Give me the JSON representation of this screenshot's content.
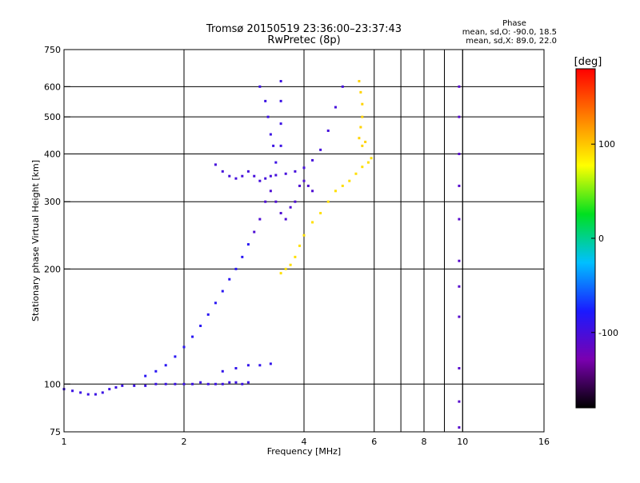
{
  "chart_data": {
    "type": "scatter",
    "title": "Tromsø 20150519 23:36:00–23:37:43",
    "subtitle": "RwPretec (8p)",
    "xlabel": "Frequency [MHz]",
    "ylabel": "Stationary phase Virtual Height [km]",
    "x_scale": "log",
    "y_scale": "log",
    "xlim": [
      1,
      16
    ],
    "ylim": [
      75,
      750
    ],
    "x_ticks": [
      {
        "value": 1,
        "label": "1"
      },
      {
        "value": 2,
        "label": "2"
      },
      {
        "value": 4,
        "label": "4"
      },
      {
        "value": 6,
        "label": "6"
      },
      {
        "value": 8,
        "label": "8"
      },
      {
        "value": 10,
        "label": "10"
      },
      {
        "value": 16,
        "label": "16"
      }
    ],
    "x_minor_gridlines": [
      7,
      9,
      10
    ],
    "y_ticks": [
      {
        "value": 75,
        "label": "75"
      },
      {
        "value": 100,
        "label": "100"
      },
      {
        "value": 200,
        "label": "200"
      },
      {
        "value": 300,
        "label": "300"
      },
      {
        "value": 400,
        "label": "400"
      },
      {
        "value": 500,
        "label": "500"
      },
      {
        "value": 600,
        "label": "600"
      },
      {
        "value": 750,
        "label": "750"
      }
    ],
    "grid": true,
    "phase_stats": {
      "heading": "Phase",
      "line_o": "mean, sd,O: -90.0, 18.5",
      "line_x": "mean, sd,X:  89.0, 22.0"
    },
    "colorbar": {
      "label": "[deg]",
      "range": [
        -180,
        180
      ],
      "ticks": [
        {
          "value": 100,
          "label": "100"
        },
        {
          "value": 0,
          "label": "0"
        },
        {
          "value": -100,
          "label": "-100"
        }
      ],
      "colormap": [
        "#000000",
        "#7a00b0",
        "#1a1aff",
        "#00c0ff",
        "#00e020",
        "#ffff00",
        "#ff8000",
        "#ff0000"
      ]
    },
    "traces": [
      {
        "points": [
          [
            1.0,
            97
          ],
          [
            1.05,
            96
          ],
          [
            1.1,
            95
          ],
          [
            1.15,
            94
          ],
          [
            1.2,
            94
          ],
          [
            1.25,
            95
          ],
          [
            1.3,
            97
          ],
          [
            1.35,
            98
          ],
          [
            1.4,
            99
          ],
          [
            1.5,
            99
          ],
          [
            1.6,
            99
          ],
          [
            1.7,
            100
          ],
          [
            1.8,
            100
          ],
          [
            1.9,
            100
          ],
          [
            2.0,
            100
          ],
          [
            2.1,
            100
          ],
          [
            2.2,
            101
          ],
          [
            2.3,
            100
          ],
          [
            2.4,
            100
          ],
          [
            2.5,
            100
          ],
          [
            2.6,
            101
          ],
          [
            2.7,
            101
          ],
          [
            2.8,
            100
          ],
          [
            2.9,
            101
          ]
        ],
        "phase": -95
      },
      {
        "points": [
          [
            1.6,
            105
          ],
          [
            1.7,
            108
          ],
          [
            1.8,
            112
          ],
          [
            1.9,
            118
          ],
          [
            2.0,
            125
          ],
          [
            2.1,
            133
          ],
          [
            2.2,
            142
          ],
          [
            2.3,
            152
          ],
          [
            2.4,
            163
          ],
          [
            2.5,
            175
          ],
          [
            2.6,
            188
          ],
          [
            2.7,
            200
          ],
          [
            2.8,
            215
          ],
          [
            2.9,
            232
          ]
        ],
        "phase": -85
      },
      {
        "points": [
          [
            2.5,
            108
          ],
          [
            2.7,
            110
          ],
          [
            2.9,
            112
          ],
          [
            3.1,
            112
          ],
          [
            3.3,
            113
          ]
        ],
        "phase": -90
      },
      {
        "points": [
          [
            2.4,
            375
          ],
          [
            2.5,
            360
          ],
          [
            2.6,
            350
          ],
          [
            2.7,
            345
          ],
          [
            2.8,
            350
          ],
          [
            2.9,
            360
          ],
          [
            3.0,
            350
          ],
          [
            3.1,
            340
          ],
          [
            3.2,
            345
          ],
          [
            3.3,
            350
          ],
          [
            3.4,
            352
          ],
          [
            3.6,
            355
          ],
          [
            3.8,
            360
          ],
          [
            4.0,
            368
          ],
          [
            4.2,
            385
          ],
          [
            4.4,
            410
          ],
          [
            4.6,
            460
          ],
          [
            4.8,
            530
          ],
          [
            5.0,
            600
          ]
        ],
        "phase": -100
      },
      {
        "points": [
          [
            3.0,
            250
          ],
          [
            3.1,
            270
          ],
          [
            3.2,
            300
          ],
          [
            3.3,
            320
          ],
          [
            3.4,
            300
          ],
          [
            3.5,
            280
          ],
          [
            3.6,
            270
          ],
          [
            3.7,
            290
          ],
          [
            3.8,
            300
          ],
          [
            3.9,
            330
          ],
          [
            4.0,
            340
          ],
          [
            4.1,
            330
          ],
          [
            4.2,
            320
          ]
        ],
        "phase": -105
      },
      {
        "points": [
          [
            3.1,
            600
          ],
          [
            3.2,
            550
          ],
          [
            3.25,
            500
          ],
          [
            3.3,
            450
          ],
          [
            3.35,
            420
          ],
          [
            3.4,
            380
          ],
          [
            3.5,
            620
          ],
          [
            3.5,
            550
          ],
          [
            3.5,
            480
          ],
          [
            3.5,
            420
          ]
        ],
        "phase": -95
      },
      {
        "points": [
          [
            3.5,
            195
          ],
          [
            3.6,
            200
          ],
          [
            3.7,
            205
          ],
          [
            3.8,
            215
          ],
          [
            3.9,
            230
          ],
          [
            4.0,
            245
          ],
          [
            4.2,
            265
          ],
          [
            4.4,
            280
          ],
          [
            4.6,
            300
          ],
          [
            4.8,
            320
          ],
          [
            5.0,
            330
          ],
          [
            5.2,
            340
          ],
          [
            5.4,
            355
          ],
          [
            5.6,
            370
          ],
          [
            5.8,
            380
          ],
          [
            5.9,
            390
          ]
        ],
        "phase": 90
      },
      {
        "points": [
          [
            5.5,
            620
          ],
          [
            5.55,
            580
          ],
          [
            5.6,
            540
          ],
          [
            5.6,
            500
          ],
          [
            5.55,
            470
          ],
          [
            5.5,
            440
          ],
          [
            5.6,
            420
          ],
          [
            5.7,
            430
          ]
        ],
        "phase": 95
      },
      {
        "points": [
          [
            9.8,
            600
          ],
          [
            9.8,
            500
          ],
          [
            9.8,
            400
          ],
          [
            9.8,
            330
          ],
          [
            9.8,
            270
          ],
          [
            9.8,
            210
          ],
          [
            9.8,
            180
          ],
          [
            9.8,
            150
          ],
          [
            9.8,
            110
          ],
          [
            9.8,
            90
          ],
          [
            9.8,
            77
          ]
        ],
        "phase": -110
      }
    ]
  }
}
